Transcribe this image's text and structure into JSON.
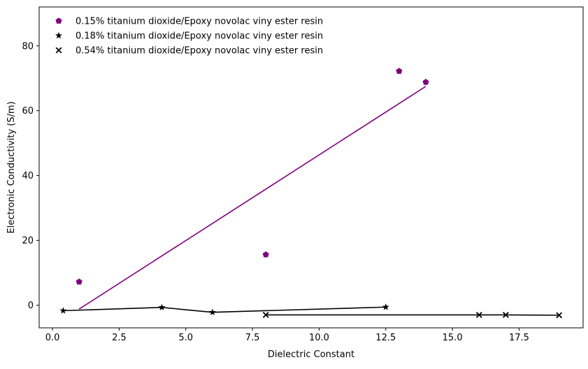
{
  "chart_data": {
    "type": "scatter",
    "title": "",
    "xlabel": "Dielectric Constant",
    "ylabel": "Electronic Conductivity (S/m)",
    "xlim": [
      -0.5,
      19.9
    ],
    "ylim": [
      -7,
      92
    ],
    "x_ticks": [
      0.0,
      2.5,
      5.0,
      7.5,
      10.0,
      12.5,
      15.0,
      17.5
    ],
    "x_tick_labels": [
      "0.0",
      "2.5",
      "5.0",
      "7.5",
      "10.0",
      "12.5",
      "15.0",
      "17.5"
    ],
    "y_ticks": [
      0,
      20,
      40,
      60,
      80
    ],
    "y_tick_labels": [
      "0",
      "20",
      "40",
      "60",
      "80"
    ],
    "grid": false,
    "legend_position": "top-left",
    "series": [
      {
        "name": "0.15% titanium dioxide/Epoxy novolac viny ester resin",
        "color": "#800080",
        "marker": "pentagon",
        "points": [
          {
            "x": 1.0,
            "y": 7.2
          },
          {
            "x": 8.0,
            "y": 15.6
          },
          {
            "x": 13.0,
            "y": 72.2
          },
          {
            "x": 14.0,
            "y": 68.8
          }
        ],
        "line": [
          {
            "x": 1.0,
            "y": -1.2
          },
          {
            "x": 14.0,
            "y": 67.5
          }
        ]
      },
      {
        "name": "0.18% titanium dioxide/Epoxy novolac viny ester resin",
        "color": "#000000",
        "marker": "star",
        "points": [
          {
            "x": 0.4,
            "y": -1.7
          },
          {
            "x": 4.1,
            "y": -0.7
          },
          {
            "x": 6.0,
            "y": -2.2
          },
          {
            "x": 12.5,
            "y": -0.6
          }
        ],
        "line": [
          {
            "x": 0.4,
            "y": -1.7
          },
          {
            "x": 4.1,
            "y": -0.7
          },
          {
            "x": 6.0,
            "y": -2.2
          },
          {
            "x": 12.5,
            "y": -0.6
          }
        ]
      },
      {
        "name": "0.54% titanium dioxide/Epoxy novolac viny ester resin",
        "color": "#000000",
        "marker": "x",
        "points": [
          {
            "x": 8.0,
            "y": -3.0
          },
          {
            "x": 16.0,
            "y": -3.0
          },
          {
            "x": 17.0,
            "y": -3.0
          },
          {
            "x": 19.0,
            "y": -3.1
          }
        ],
        "line": [
          {
            "x": 8.0,
            "y": -3.0
          },
          {
            "x": 16.0,
            "y": -3.0
          },
          {
            "x": 17.0,
            "y": -3.0
          },
          {
            "x": 19.0,
            "y": -3.1
          }
        ]
      }
    ]
  }
}
